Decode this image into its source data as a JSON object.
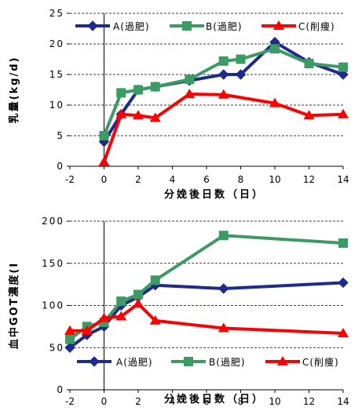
{
  "chart_data": [
    {
      "type": "line",
      "title": "",
      "xlabel": "分娩後日数（日）",
      "ylabel": "乳量(kg/d)",
      "xlim": [
        -2,
        14
      ],
      "ylim": [
        0,
        25
      ],
      "x_ticks": [
        "-2",
        "0",
        "2",
        "4",
        "6",
        "8",
        "10",
        "12",
        "14"
      ],
      "y_ticks": [
        "0",
        "5",
        "10",
        "15",
        "20",
        "25"
      ],
      "grid": "horizontal dashed",
      "legend": "top",
      "series": [
        {
          "name": "A(過肥)",
          "color": "#1f2a8f",
          "marker": "diamond",
          "x": [
            0,
            1,
            2,
            3,
            5,
            7,
            8,
            10,
            12,
            14
          ],
          "y": [
            4,
            8.5,
            12.5,
            13,
            14,
            15,
            15,
            20.3,
            17,
            15
          ]
        },
        {
          "name": "B(過肥)",
          "color": "#3c9a64",
          "marker": "square",
          "x": [
            0,
            1,
            2,
            3,
            5,
            7,
            8,
            10,
            12,
            14
          ],
          "y": [
            5,
            12,
            12.5,
            13,
            14.2,
            17.2,
            17.5,
            19.2,
            16.8,
            16.2
          ]
        },
        {
          "name": "C(削痩)",
          "color": "#ff0000",
          "marker": "triangle",
          "x": [
            0,
            1,
            2,
            3,
            5,
            7,
            10,
            12,
            14
          ],
          "y": [
            0.7,
            8.5,
            8.3,
            7.9,
            11.8,
            11.7,
            10.3,
            8.3,
            8.5
          ]
        }
      ]
    },
    {
      "type": "line",
      "title": "",
      "xlabel": "分娩後日数（日）",
      "ylabel": "血中GOT濃度(I",
      "xlim": [
        -2,
        14
      ],
      "ylim": [
        0,
        200
      ],
      "x_ticks": [
        "-2",
        "0",
        "2",
        "4",
        "6",
        "8",
        "10",
        "12",
        "14"
      ],
      "y_ticks": [
        "0",
        "50",
        "100",
        "150",
        "200"
      ],
      "grid": "horizontal dashed",
      "legend": "bottom",
      "series": [
        {
          "name": "A(過肥)",
          "color": "#1f2a8f",
          "marker": "diamond",
          "x": [
            -2,
            -1,
            0,
            1,
            2,
            3,
            7,
            14
          ],
          "y": [
            50,
            65,
            75,
            100,
            110,
            124,
            120,
            127
          ]
        },
        {
          "name": "B(過肥)",
          "color": "#3c9a64",
          "marker": "square",
          "x": [
            -2,
            -1,
            0,
            1,
            2,
            3,
            7,
            14
          ],
          "y": [
            60,
            75,
            80,
            105,
            113,
            130,
            183,
            174
          ]
        },
        {
          "name": "C(削痩)",
          "color": "#ff0000",
          "marker": "triangle",
          "x": [
            -2,
            -1,
            0,
            1,
            2,
            3,
            7,
            14
          ],
          "y": [
            70,
            70,
            85,
            87,
            102,
            82,
            73,
            67
          ]
        }
      ]
    }
  ]
}
